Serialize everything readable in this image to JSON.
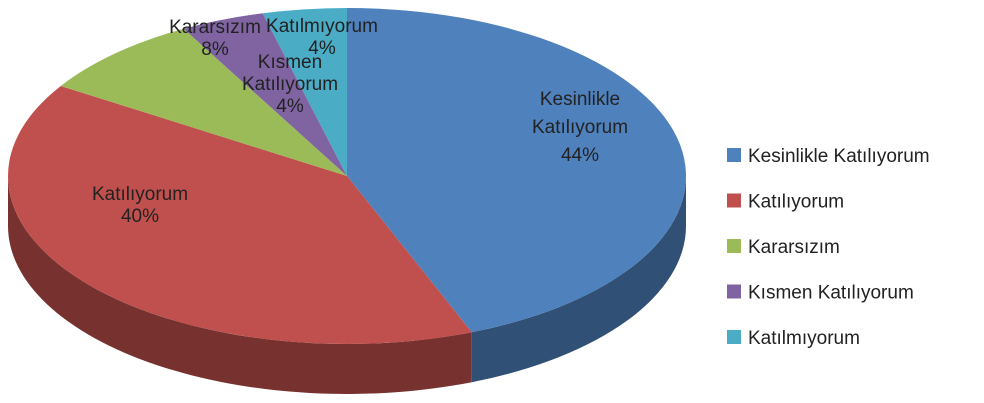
{
  "chart_data": {
    "type": "pie",
    "categories": [
      "Kesinlikle Katılıyorum",
      "Katılıyorum",
      "Kararsızım",
      "Kısmen Katılıyorum",
      "Katılmıyorum"
    ],
    "values": [
      44,
      40,
      8,
      4,
      4
    ],
    "value_labels": [
      "44%",
      "40%",
      "8%",
      "4%",
      "4%"
    ],
    "colors": [
      "#4f81bd",
      "#c0504d",
      "#9bbb59",
      "#8064a2",
      "#4bacc6"
    ],
    "legend": "right"
  }
}
